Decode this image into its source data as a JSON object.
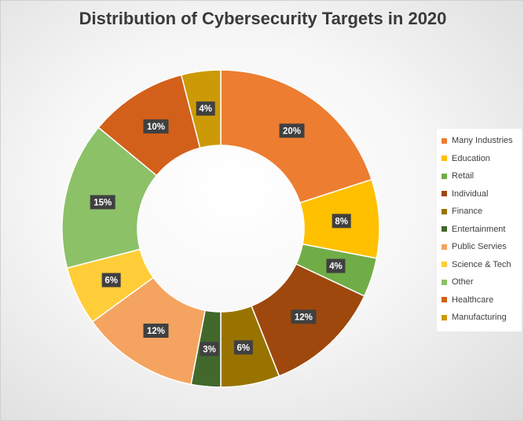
{
  "chart_data": {
    "type": "pie",
    "style": "donut",
    "title": "Distribution of Cybersecurity Targets in 2020",
    "legend_position": "right",
    "slices": [
      {
        "label": "Many Industries",
        "value": 20,
        "display": "20%",
        "color": "#ED7D31"
      },
      {
        "label": "Education",
        "value": 8,
        "display": "8%",
        "color": "#FFC000"
      },
      {
        "label": "Retail",
        "value": 4,
        "display": "4%",
        "color": "#70AD47"
      },
      {
        "label": "Individual",
        "value": 12,
        "display": "12%",
        "color": "#9E480E"
      },
      {
        "label": "Finance",
        "value": 6,
        "display": "6%",
        "color": "#997300"
      },
      {
        "label": "Entertainment",
        "value": 3,
        "display": "3%",
        "color": "#43682B"
      },
      {
        "label": "Public Servies",
        "value": 12,
        "display": "12%",
        "color": "#F4A460"
      },
      {
        "label": "Science & Tech",
        "value": 6,
        "display": "6%",
        "color": "#FFCD38"
      },
      {
        "label": "Other",
        "value": 15,
        "display": "15%",
        "color": "#8CC168"
      },
      {
        "label": "Healthcare",
        "value": 10,
        "display": "10%",
        "color": "#D2601A"
      },
      {
        "label": "Manufacturing",
        "value": 4,
        "display": "4%",
        "color": "#CC9A06"
      }
    ]
  }
}
